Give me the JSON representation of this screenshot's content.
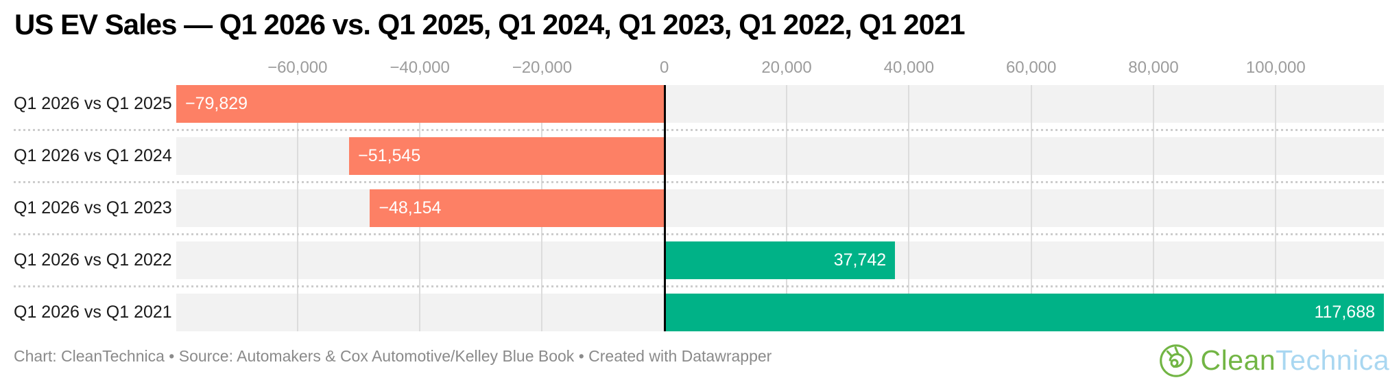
{
  "title": "US EV Sales — Q1 2026 vs. Q1 2025, Q1 2024, Q1 2023, Q1 2022, Q1 2021",
  "footer": {
    "attribution": "Chart: CleanTechnica • Source: Automakers & Cox Automotive/Kelley Blue Book • Created with Datawrapper"
  },
  "logo": {
    "text_primary": "Clean",
    "text_secondary": "Technica",
    "icon": "cleantechnica-plug-icon",
    "color_primary": "#72b544",
    "color_secondary": "#a9d7f1"
  },
  "colors": {
    "negative_bar": "#fd8065",
    "positive_bar": "#00b287",
    "row_background": "#f2f2f2",
    "grid_line": "#dcdcdc",
    "separator_dots": "#cdcdcd",
    "zero_line": "#000000",
    "tick_text": "#9c9c9c",
    "category_text": "#1a1a1a",
    "bar_label_text": "#ffffff",
    "footer_text": "#8a8a8a",
    "title_text": "#000000"
  },
  "chart_data": {
    "type": "bar",
    "orientation": "horizontal",
    "title": "US EV Sales — Q1 2026 vs. Q1 2025, Q1 2024, Q1 2023, Q1 2022, Q1 2021",
    "categories": [
      "Q1 2026 vs Q1 2025",
      "Q1 2026 vs Q1 2024",
      "Q1 2026 vs Q1 2023",
      "Q1 2026 vs Q1 2022",
      "Q1 2026 vs Q1 2021"
    ],
    "values": [
      -79829,
      -51545,
      -48154,
      37742,
      117688
    ],
    "value_labels": [
      "−79,829",
      "−51,545",
      "−48,154",
      "37,742",
      "117,688"
    ],
    "x_ticks": [
      -60000,
      -40000,
      -20000,
      0,
      20000,
      40000,
      60000,
      80000,
      100000
    ],
    "x_tick_labels": [
      "−60,000",
      "−40,000",
      "−20,000",
      "0",
      "20,000",
      "40,000",
      "60,000",
      "80,000",
      "100,000"
    ],
    "xlim": [
      -79829,
      117688
    ],
    "grid": true,
    "legend": false,
    "xlabel": "",
    "ylabel": ""
  }
}
